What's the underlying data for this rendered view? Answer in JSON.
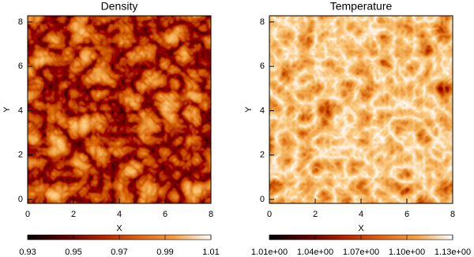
{
  "chart_data": [
    {
      "type": "image",
      "title": "Density",
      "xlabel": "X",
      "ylabel": "Y",
      "xlim": [
        0,
        8
      ],
      "ylim": [
        -0.18,
        8.28
      ],
      "xticks": [
        0,
        2,
        4,
        6,
        8
      ],
      "yticks": [
        0,
        2,
        4,
        6,
        8
      ],
      "clim": [
        0.93,
        1.01
      ],
      "cticks": [
        0.93,
        0.95,
        0.97,
        0.99,
        1.01
      ],
      "colormap": [
        "#000000",
        "#5a0000",
        "#b02000",
        "#e06010",
        "#f8a040",
        "#ffffff"
      ]
    },
    {
      "type": "image",
      "title": "Temperature",
      "xlabel": "X",
      "ylabel": "Y",
      "xlim": [
        0,
        8
      ],
      "ylim": [
        -0.18,
        8.28
      ],
      "xticks": [
        0,
        2,
        4,
        6,
        8
      ],
      "yticks": [
        0,
        2,
        4,
        6,
        8
      ],
      "clim": [
        1.01,
        1.13
      ],
      "cticks": [
        {
          "value": 1.01,
          "label": "1.01e+00"
        },
        {
          "value": 1.04,
          "label": "1.04e+00"
        },
        {
          "value": 1.07,
          "label": "1.07e+00"
        },
        {
          "value": 1.1,
          "label": "1.10e+00"
        },
        {
          "value": 1.13,
          "label": "1.13e+00"
        }
      ],
      "colormap": [
        "#000000",
        "#5a0000",
        "#b02000",
        "#e06010",
        "#f8a040",
        "#ffffff"
      ]
    }
  ]
}
